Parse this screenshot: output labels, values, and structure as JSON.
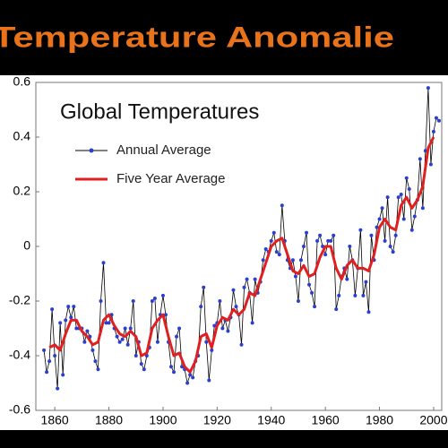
{
  "chart_data": {
    "type": "line",
    "title": "Temperature Anomalie",
    "subtitle": "Global Temperatures",
    "x": [
      1856,
      1857,
      1858,
      1859,
      1860,
      1861,
      1862,
      1863,
      1864,
      1865,
      1866,
      1867,
      1868,
      1869,
      1870,
      1871,
      1872,
      1873,
      1874,
      1875,
      1876,
      1877,
      1878,
      1879,
      1880,
      1881,
      1882,
      1883,
      1884,
      1885,
      1886,
      1887,
      1888,
      1889,
      1890,
      1891,
      1892,
      1893,
      1894,
      1895,
      1896,
      1897,
      1898,
      1899,
      1900,
      1901,
      1902,
      1903,
      1904,
      1905,
      1906,
      1907,
      1908,
      1909,
      1910,
      1911,
      1912,
      1913,
      1914,
      1915,
      1916,
      1917,
      1918,
      1919,
      1920,
      1921,
      1922,
      1923,
      1924,
      1925,
      1926,
      1927,
      1928,
      1929,
      1930,
      1931,
      1932,
      1933,
      1934,
      1935,
      1936,
      1937,
      1938,
      1939,
      1940,
      1941,
      1942,
      1943,
      1944,
      1945,
      1946,
      1947,
      1948,
      1949,
      1950,
      1951,
      1952,
      1953,
      1954,
      1955,
      1956,
      1957,
      1958,
      1959,
      1960,
      1961,
      1962,
      1963,
      1964,
      1965,
      1966,
      1967,
      1968,
      1969,
      1970,
      1971,
      1972,
      1973,
      1974,
      1975,
      1976,
      1977,
      1978,
      1979,
      1980,
      1981,
      1982,
      1983,
      1984,
      1985,
      1986,
      1987,
      1988,
      1989,
      1990,
      1991,
      1992,
      1993,
      1994,
      1995,
      1996,
      1997,
      1998,
      1999,
      2000,
      2001,
      2002
    ],
    "series": [
      {
        "name": "Annual Average",
        "color": "#2a3fd0",
        "line_color": "#000000",
        "values": [
          -0.38,
          -0.46,
          -0.42,
          -0.23,
          -0.4,
          -0.52,
          -0.28,
          -0.47,
          -0.27,
          -0.22,
          -0.26,
          -0.22,
          -0.3,
          -0.3,
          -0.3,
          -0.35,
          -0.31,
          -0.33,
          -0.38,
          -0.42,
          -0.45,
          -0.2,
          -0.06,
          -0.28,
          -0.28,
          -0.25,
          -0.3,
          -0.33,
          -0.35,
          -0.34,
          -0.3,
          -0.36,
          -0.3,
          -0.2,
          -0.4,
          -0.35,
          -0.43,
          -0.45,
          -0.4,
          -0.37,
          -0.2,
          -0.19,
          -0.35,
          -0.25,
          -0.18,
          -0.25,
          -0.35,
          -0.44,
          -0.46,
          -0.33,
          -0.3,
          -0.44,
          -0.45,
          -0.5,
          -0.47,
          -0.48,
          -0.42,
          -0.4,
          -0.22,
          -0.15,
          -0.35,
          -0.49,
          -0.38,
          -0.29,
          -0.28,
          -0.2,
          -0.3,
          -0.27,
          -0.31,
          -0.26,
          -0.16,
          -0.22,
          -0.25,
          -0.36,
          -0.15,
          -0.12,
          -0.17,
          -0.28,
          -0.12,
          -0.17,
          -0.13,
          -0.05,
          -0.01,
          -0.02,
          0.02,
          0.05,
          -0.02,
          -0.03,
          0.15,
          0.02,
          -0.05,
          -0.08,
          -0.05,
          -0.11,
          -0.2,
          -0.05,
          0.0,
          0.05,
          -0.14,
          -0.17,
          -0.22,
          0.02,
          0.04,
          0.0,
          -0.03,
          0.02,
          0.02,
          0.04,
          -0.23,
          -0.18,
          -0.11,
          -0.08,
          -0.12,
          0.0,
          -0.05,
          -0.18,
          -0.08,
          0.06,
          -0.18,
          -0.13,
          -0.24,
          0.04,
          -0.05,
          0.07,
          0.1,
          0.14,
          0.02,
          0.18,
          0.0,
          -0.02,
          0.04,
          0.18,
          0.19,
          0.1,
          0.25,
          0.21,
          0.06,
          0.11,
          0.17,
          0.32,
          0.14,
          0.35,
          0.58,
          0.3,
          0.42,
          0.47,
          0.46
        ]
      },
      {
        "name": "Five Year Average",
        "color": "#e02020",
        "x": [
          1858,
          1860,
          1862,
          1864,
          1866,
          1868,
          1870,
          1872,
          1874,
          1876,
          1878,
          1880,
          1882,
          1884,
          1886,
          1888,
          1890,
          1892,
          1894,
          1896,
          1898,
          1900,
          1902,
          1904,
          1906,
          1908,
          1910,
          1912,
          1914,
          1916,
          1918,
          1920,
          1922,
          1924,
          1926,
          1928,
          1930,
          1932,
          1934,
          1936,
          1938,
          1940,
          1942,
          1944,
          1946,
          1948,
          1950,
          1952,
          1954,
          1956,
          1958,
          1960,
          1962,
          1964,
          1966,
          1968,
          1970,
          1972,
          1974,
          1976,
          1978,
          1980,
          1982,
          1984,
          1986,
          1988,
          1990,
          1992,
          1994,
          1996,
          1998,
          2000
        ],
        "values": [
          -0.37,
          -0.36,
          -0.38,
          -0.32,
          -0.27,
          -0.27,
          -0.31,
          -0.33,
          -0.36,
          -0.35,
          -0.27,
          -0.25,
          -0.29,
          -0.32,
          -0.33,
          -0.31,
          -0.33,
          -0.4,
          -0.39,
          -0.3,
          -0.27,
          -0.25,
          -0.33,
          -0.4,
          -0.39,
          -0.44,
          -0.46,
          -0.42,
          -0.33,
          -0.32,
          -0.37,
          -0.29,
          -0.26,
          -0.27,
          -0.23,
          -0.25,
          -0.23,
          -0.17,
          -0.18,
          -0.12,
          -0.06,
          0.0,
          0.02,
          0.03,
          -0.03,
          -0.09,
          -0.1,
          -0.07,
          -0.11,
          -0.1,
          -0.04,
          0.0,
          0.0,
          -0.08,
          -0.12,
          -0.07,
          -0.05,
          -0.08,
          -0.08,
          -0.09,
          -0.03,
          0.07,
          0.1,
          0.07,
          0.06,
          0.15,
          0.18,
          0.14,
          0.17,
          0.22,
          0.36,
          0.4
        ]
      }
    ],
    "xlim": [
      1853,
      2003
    ],
    "xticks": [
      1860,
      1880,
      1900,
      1920,
      1940,
      1960,
      1980,
      2000
    ],
    "ylim": [
      -0.6,
      0.6
    ],
    "yticks": [
      0.6,
      0.4,
      0.2,
      0,
      -0.2,
      -0.4,
      -0.6
    ],
    "grid": false,
    "legend": "upper left",
    "title_color": "#e8731a"
  }
}
